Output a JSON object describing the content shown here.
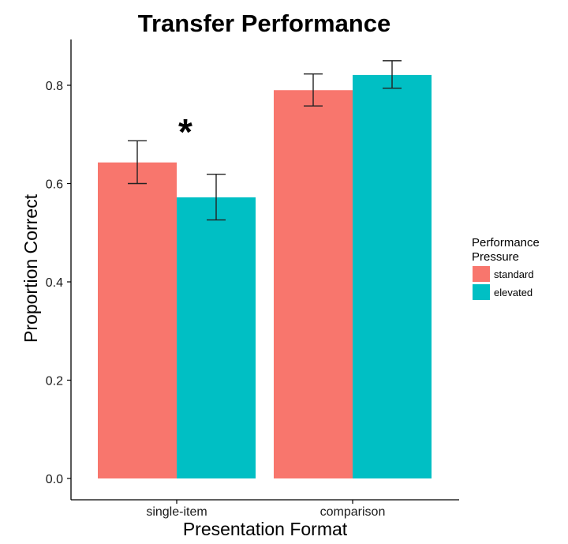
{
  "chart_data": {
    "type": "bar",
    "title": "Transfer Performance",
    "xlabel": "Presentation Format",
    "ylabel": "Proportion Correct",
    "categories": [
      "single-item",
      "comparison"
    ],
    "series": [
      {
        "name": "standard",
        "color": "#F8766D",
        "values": [
          0.643,
          0.79
        ],
        "err_low": [
          0.6,
          0.758
        ],
        "err_high": [
          0.687,
          0.823
        ]
      },
      {
        "name": "elevated",
        "color": "#00BFC4",
        "values": [
          0.572,
          0.821
        ],
        "err_low": [
          0.526,
          0.794
        ],
        "err_high": [
          0.619,
          0.85
        ]
      }
    ],
    "ylim": [
      0,
      0.88
    ],
    "yticks": [
      "0.0",
      "0.2",
      "0.4",
      "0.6",
      "0.8"
    ],
    "ytick_values": [
      0,
      0.2,
      0.4,
      0.6,
      0.8
    ],
    "legend": {
      "title_lines": [
        "Performance",
        "Pressure"
      ],
      "placement": "right"
    },
    "annotations": [
      {
        "text": "*",
        "category": "single-item"
      }
    ],
    "grid": false
  }
}
